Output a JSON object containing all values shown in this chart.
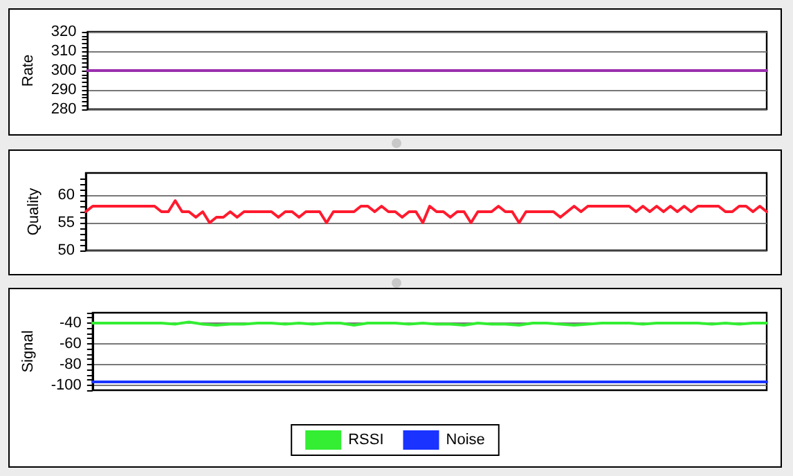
{
  "chart_data": [
    {
      "type": "line",
      "ylabel": "Rate",
      "categories": [
        null,
        null,
        null,
        null,
        null,
        null,
        null,
        null,
        null,
        null
      ],
      "series": [
        {
          "color": "#9b2fae",
          "values": [
            300,
            300,
            300,
            300,
            300,
            300,
            300,
            300,
            300,
            300
          ]
        }
      ],
      "ylim": [
        280,
        320
      ],
      "yticks": [
        280,
        {
          "value": 282,
          "label": null
        },
        {
          "value": 284,
          "label": null
        },
        {
          "value": 286,
          "label": null
        },
        {
          "value": 288,
          "label": null
        },
        290,
        {
          "value": 292,
          "label": null
        },
        {
          "value": 294,
          "label": null
        },
        {
          "value": 296,
          "label": null
        },
        {
          "value": 298,
          "label": null
        },
        300,
        {
          "value": 302,
          "label": null
        },
        {
          "value": 304,
          "label": null
        },
        {
          "value": 306,
          "label": null
        },
        {
          "value": 308,
          "label": null
        },
        310,
        {
          "value": 312,
          "label": null
        },
        {
          "value": 314,
          "label": null
        },
        {
          "value": 316,
          "label": null
        },
        {
          "value": 318,
          "label": null
        },
        320
      ],
      "grid": "y",
      "tick_labels": "y",
      "legend": false
    },
    {
      "type": "line",
      "ylabel": "Quality",
      "categories": [
        null,
        null,
        null,
        null,
        null,
        null,
        null,
        null,
        null,
        null,
        null,
        null,
        null,
        null,
        null,
        null,
        null,
        null,
        null,
        null,
        null,
        null,
        null,
        null,
        null,
        null,
        null,
        null,
        null,
        null,
        null,
        null,
        null,
        null,
        null,
        null,
        null,
        null,
        null,
        null,
        null,
        null,
        null,
        null,
        null,
        null,
        null,
        null,
        null,
        null,
        null,
        null,
        null,
        null,
        null,
        null,
        null,
        null,
        null,
        null,
        null,
        null,
        null,
        null,
        null,
        null,
        null,
        null,
        null,
        null,
        null,
        null,
        null,
        null,
        null,
        null,
        null,
        null,
        null,
        null,
        null,
        null,
        null,
        null,
        null,
        null,
        null,
        null,
        null,
        null,
        null,
        null,
        null,
        null,
        null,
        null,
        null,
        null,
        null,
        null
      ],
      "series": [
        {
          "color": "#ff1a2e",
          "values": [
            57,
            58,
            58,
            58,
            58,
            58,
            58,
            58,
            58,
            58,
            58,
            57,
            57,
            59,
            57,
            57,
            56,
            57,
            55,
            56,
            56,
            57,
            56,
            57,
            57,
            57,
            57,
            57,
            56,
            57,
            57,
            56,
            57,
            57,
            57,
            55,
            57,
            57,
            57,
            57,
            58,
            58,
            57,
            58,
            57,
            57,
            56,
            57,
            57,
            55,
            58,
            57,
            57,
            56,
            57,
            57,
            55,
            57,
            57,
            57,
            58,
            57,
            57,
            55,
            57,
            57,
            57,
            57,
            57,
            56,
            57,
            58,
            57,
            58,
            58,
            58,
            58,
            58,
            58,
            58,
            57,
            58,
            57,
            58,
            57,
            58,
            57,
            58,
            57,
            58,
            58,
            58,
            58,
            57,
            57,
            58,
            58,
            57,
            58,
            57
          ]
        }
      ],
      "ylim": [
        50,
        64
      ],
      "yticks": [
        50,
        {
          "value": 51,
          "label": null
        },
        {
          "value": 52,
          "label": null
        },
        {
          "value": 53,
          "label": null
        },
        {
          "value": 54,
          "label": null
        },
        55,
        {
          "value": 56,
          "label": null
        },
        {
          "value": 57,
          "label": null
        },
        {
          "value": 58,
          "label": null
        },
        {
          "value": 59,
          "label": null
        },
        60,
        {
          "value": 61,
          "label": null
        },
        {
          "value": 62,
          "label": null
        },
        {
          "value": 63,
          "label": null
        }
      ],
      "grid": "y",
      "tick_labels": "y",
      "legend": false
    },
    {
      "type": "line",
      "ylabel": "Signal",
      "categories": [
        null,
        null,
        null,
        null,
        null,
        null,
        null,
        null,
        null,
        null,
        null,
        null,
        null,
        null,
        null,
        null,
        null,
        null,
        null,
        null,
        null,
        null,
        null,
        null,
        null,
        null,
        null,
        null,
        null,
        null,
        null,
        null,
        null,
        null,
        null,
        null,
        null,
        null,
        null,
        null,
        null,
        null,
        null,
        null,
        null,
        null,
        null,
        null,
        null,
        null
      ],
      "series": [
        {
          "name": "RSSI",
          "color": "#33ee33",
          "values": [
            -40,
            -40,
            -40,
            -40,
            -40,
            -40,
            -41,
            -39,
            -41,
            -42,
            -41,
            -41,
            -40,
            -40,
            -41,
            -40,
            -41,
            -40,
            -40,
            -42,
            -40,
            -40,
            -40,
            -41,
            -40,
            -41,
            -41,
            -42,
            -40,
            -41,
            -41,
            -42,
            -40,
            -40,
            -41,
            -42,
            -41,
            -40,
            -40,
            -40,
            -41,
            -40,
            -40,
            -40,
            -40,
            -41,
            -40,
            -41,
            -40,
            -40
          ]
        },
        {
          "name": "Noise",
          "color": "#1a33ff",
          "values": [
            -97,
            -97,
            -97,
            -97,
            -97,
            -97,
            -97,
            -97,
            -97,
            -97,
            -97,
            -97,
            -97,
            -97,
            -97,
            -97,
            -97,
            -97,
            -97,
            -97,
            -97,
            -97,
            -97,
            -97,
            -97,
            -97,
            -97,
            -97,
            -97,
            -97,
            -97,
            -97,
            -97,
            -97,
            -97,
            -97,
            -97,
            -97,
            -97,
            -97,
            -97,
            -97,
            -97,
            -97,
            -97,
            -97,
            -97,
            -97,
            -97,
            -97
          ]
        }
      ],
      "ylim": [
        -105,
        -30
      ],
      "yticks": [
        {
          "value": -105,
          "label": null
        },
        -100,
        {
          "value": -95,
          "label": null
        },
        {
          "value": -90,
          "label": null
        },
        {
          "value": -85,
          "label": null
        },
        -80,
        {
          "value": -75,
          "label": null
        },
        {
          "value": -70,
          "label": null
        },
        {
          "value": -65,
          "label": null
        },
        -60,
        {
          "value": -55,
          "label": null
        },
        {
          "value": -50,
          "label": null
        },
        {
          "value": -45,
          "label": null
        },
        -40,
        {
          "value": -35,
          "label": null
        },
        {
          "value": -30,
          "label": null
        }
      ],
      "grid": "y",
      "tick_labels": "y",
      "legend": "bottom"
    }
  ]
}
